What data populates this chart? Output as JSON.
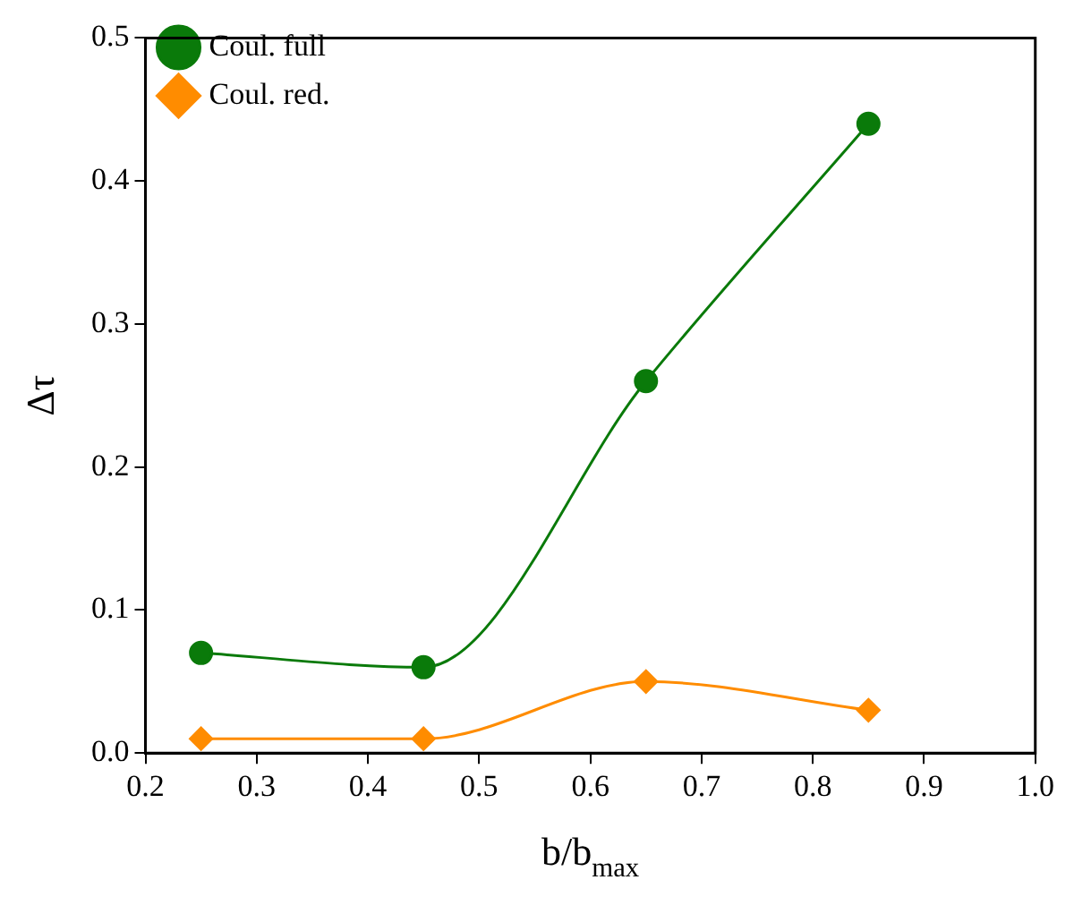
{
  "chart_data": {
    "type": "line",
    "xlabel": "b/b$_{max}$",
    "ylabel": "Δτ",
    "x": [
      0.25,
      0.45,
      0.65,
      0.85
    ],
    "series": [
      {
        "name": "Coul. full",
        "color": "#0a7a0a",
        "marker": "circle",
        "values": [
          0.07,
          0.06,
          0.26,
          0.44
        ]
      },
      {
        "name": "Coul. red.",
        "color": "#ff8c00",
        "marker": "diamond",
        "values": [
          0.01,
          0.01,
          0.05,
          0.03
        ]
      }
    ],
    "xlim": [
      0.2,
      1.0
    ],
    "xticks": [
      0.2,
      0.3,
      0.4,
      0.5,
      0.6,
      0.7,
      0.8,
      0.9,
      {
        "value": 1,
        "label": "1.0"
      }
    ],
    "ylim": [
      0,
      0.5
    ],
    "yticks": [
      {
        "value": 0,
        "label": "0.0"
      },
      0.1,
      0.2,
      0.3,
      0.4,
      0.5
    ],
    "grid": false,
    "legend": "top left",
    "line_style": "solid"
  }
}
